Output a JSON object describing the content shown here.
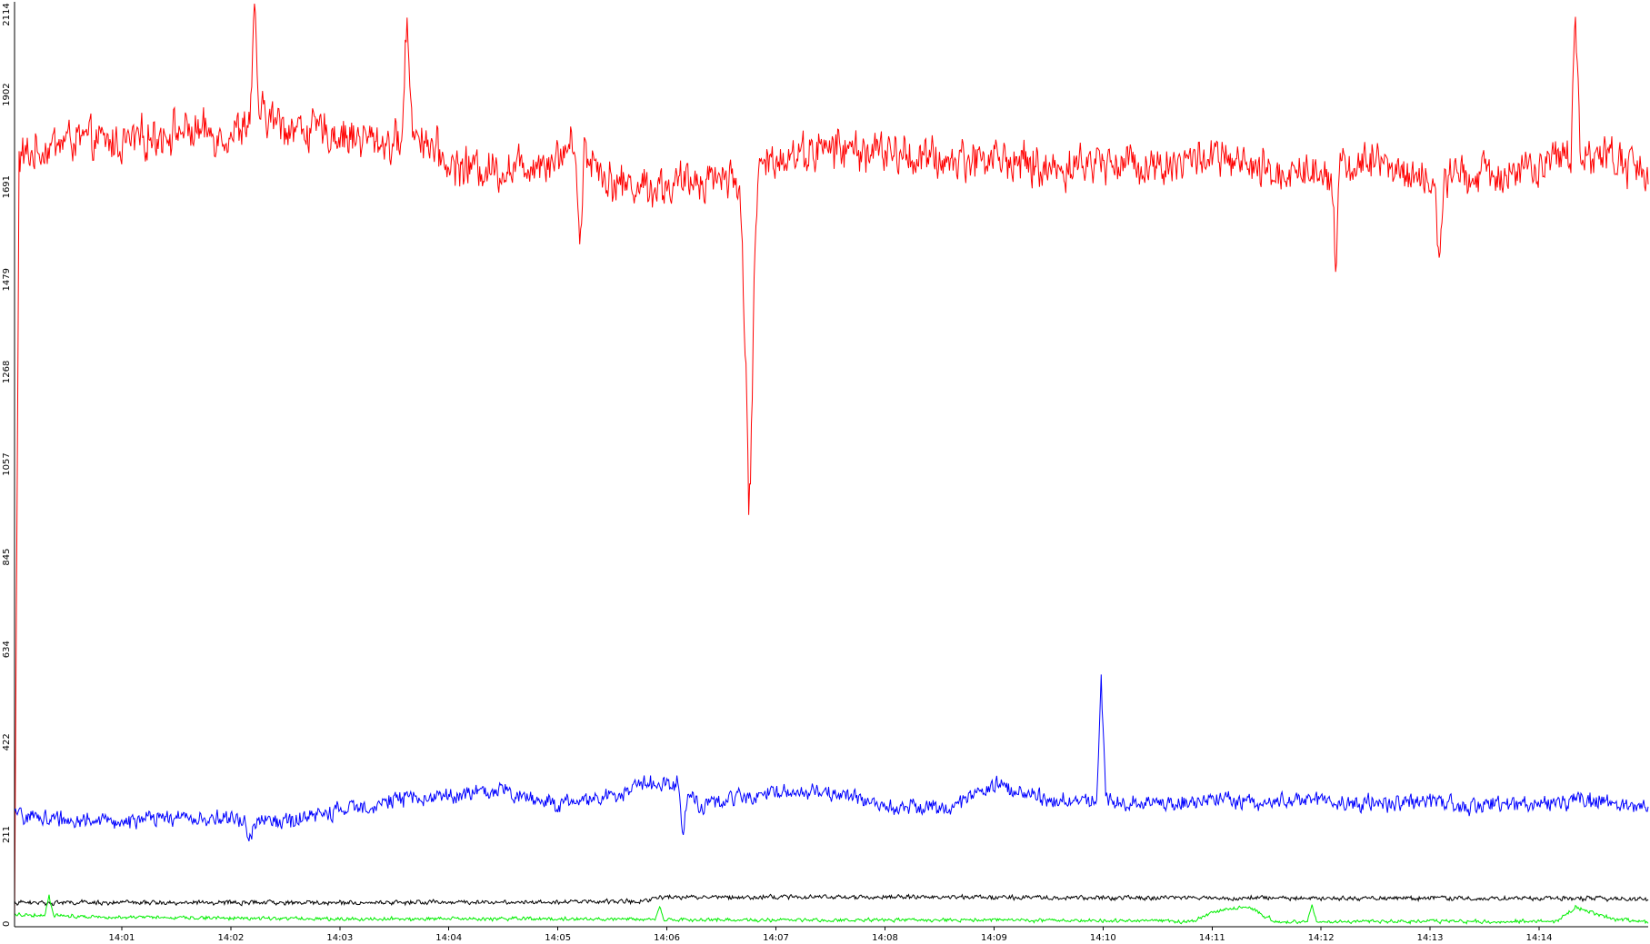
{
  "chart_data": {
    "type": "line",
    "title": "",
    "xlabel": "",
    "ylabel": "",
    "grid": false,
    "legend": "none",
    "ylim": [
      0,
      2114
    ],
    "yticks": [
      "0",
      "211",
      "422",
      "634",
      "845",
      "1057",
      "1268",
      "1479",
      "1691",
      "1902",
      "2114"
    ],
    "xlim": [
      "14:00:01",
      "14:15:00"
    ],
    "xticks": [
      "14:01",
      "14:02",
      "14:03",
      "14:04",
      "14:05",
      "14:06",
      "14:07",
      "14:08",
      "14:09",
      "14:10",
      "14:11",
      "14:12",
      "14:13",
      "14:14"
    ],
    "series": [
      {
        "color": "#ff0000",
        "style": "noisy",
        "noise": 55,
        "x": [
          "14:00:00",
          "14:00:30",
          "14:01:00",
          "14:01:30",
          "14:02:00",
          "14:02:15",
          "14:02:30",
          "14:03:00",
          "14:03:30",
          "14:03:40",
          "14:04:00",
          "14:04:30",
          "14:05:00",
          "14:05:10",
          "14:05:30",
          "14:06:00",
          "14:06:30",
          "14:06:40",
          "14:06:45",
          "14:06:50",
          "14:07:00",
          "14:07:30",
          "14:08:00",
          "14:08:30",
          "14:09:00",
          "14:09:30",
          "14:10:00",
          "14:10:30",
          "14:11:00",
          "14:11:30",
          "14:12:00",
          "14:12:30",
          "14:13:00",
          "14:13:30",
          "14:14:00",
          "14:14:20",
          "14:14:40",
          "14:15:00"
        ],
        "y": [
          1750,
          1800,
          1790,
          1820,
          1810,
          1860,
          1830,
          1810,
          1790,
          1830,
          1740,
          1730,
          1760,
          1800,
          1700,
          1690,
          1720,
          1700,
          1100,
          1720,
          1760,
          1780,
          1770,
          1750,
          1760,
          1730,
          1750,
          1740,
          1760,
          1720,
          1730,
          1750,
          1700,
          1720,
          1730,
          1770,
          1760,
          1720
        ],
        "spikes": [
          {
            "x": "14:00:01",
            "y": 0
          },
          {
            "x": "14:02:13",
            "y": 2080
          },
          {
            "x": "14:03:37",
            "y": 2100
          },
          {
            "x": "14:06:46",
            "y": 1030
          },
          {
            "x": "14:14:20",
            "y": 2114
          },
          {
            "x": "14:05:12",
            "y": 1540
          },
          {
            "x": "14:12:08",
            "y": 1530
          },
          {
            "x": "14:13:05",
            "y": 1510
          }
        ]
      },
      {
        "color": "#0000ff",
        "style": "noisy",
        "noise": 22,
        "x": [
          "14:00:00",
          "14:00:30",
          "14:01:00",
          "14:01:30",
          "14:02:00",
          "14:02:30",
          "14:03:00",
          "14:03:30",
          "14:04:00",
          "14:04:30",
          "14:05:00",
          "14:05:30",
          "14:05:50",
          "14:06:05",
          "14:06:20",
          "14:06:30",
          "14:07:00",
          "14:07:30",
          "14:08:00",
          "14:08:30",
          "14:08:50",
          "14:09:00",
          "14:09:30",
          "14:10:00",
          "14:10:30",
          "14:11:00",
          "14:11:30",
          "14:12:00",
          "14:12:30",
          "14:13:00",
          "14:13:30",
          "14:14:00",
          "14:14:30",
          "14:15:00"
        ],
        "y": [
          255,
          245,
          240,
          250,
          245,
          240,
          265,
          290,
          300,
          310,
          280,
          300,
          330,
          330,
          270,
          290,
          310,
          305,
          280,
          270,
          300,
          325,
          290,
          290,
          280,
          290,
          285,
          290,
          280,
          285,
          275,
          285,
          290,
          270
        ],
        "spikes": [
          {
            "x": "14:09:59",
            "y": 565
          },
          {
            "x": "14:02:10",
            "y": 180
          },
          {
            "x": "14:06:09",
            "y": 210
          }
        ]
      },
      {
        "color": "#000000",
        "style": "noisy",
        "noise": 6,
        "x": [
          "14:00:00",
          "14:03:00",
          "14:05:45",
          "14:05:55",
          "14:08:00",
          "14:11:00",
          "14:12:00",
          "14:14:30",
          "14:15:00"
        ],
        "y": [
          55,
          55,
          58,
          68,
          68,
          66,
          65,
          65,
          62
        ],
        "spikes": []
      },
      {
        "color": "#00ee00",
        "style": "noisy",
        "noise": 5,
        "x": [
          "14:00:00",
          "14:01:00",
          "14:03:00",
          "14:05:00",
          "14:07:00",
          "14:09:00",
          "14:10:50",
          "14:11:05",
          "14:11:20",
          "14:11:35",
          "14:13:00",
          "14:14:10",
          "14:14:20",
          "14:14:40",
          "14:15:00"
        ],
        "y": [
          28,
          22,
          18,
          18,
          15,
          15,
          12,
          40,
          45,
          12,
          12,
          12,
          45,
          18,
          10
        ],
        "spikes": [
          {
            "x": "14:00:20",
            "y": 70
          },
          {
            "x": "14:05:56",
            "y": 45
          },
          {
            "x": "14:11:55",
            "y": 48
          }
        ]
      }
    ]
  }
}
